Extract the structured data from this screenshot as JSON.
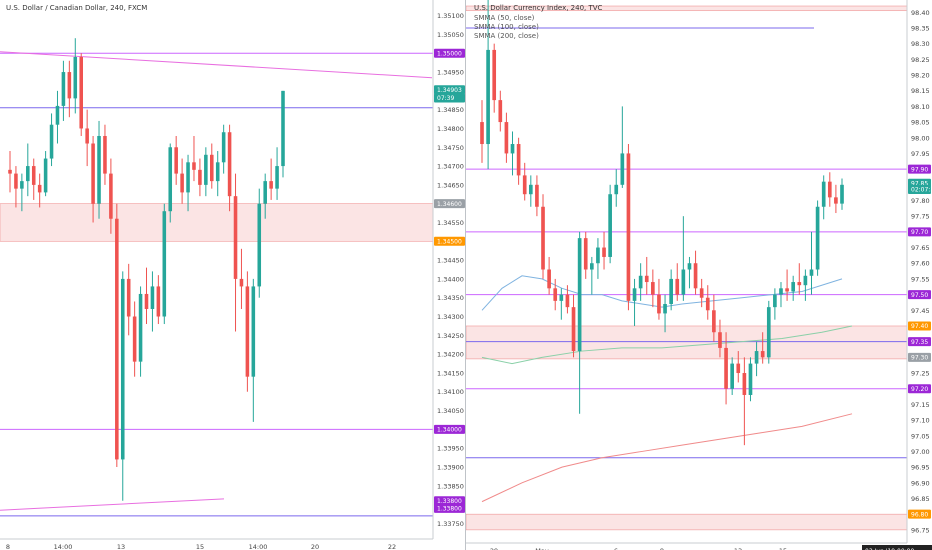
{
  "left": {
    "title": "U.S. Dollar / Canadian Dollar, 240, FXCM",
    "y_ticks": [
      "1.35100",
      "1.35050",
      "1.35000",
      "1.34950",
      "1.34900",
      "1.34850",
      "1.34800",
      "1.34750",
      "1.34700",
      "1.34650",
      "1.34600",
      "1.34550",
      "1.34500",
      "1.34450",
      "1.34400",
      "1.34350",
      "1.34300",
      "1.34250",
      "1.34200",
      "1.34150",
      "1.34100",
      "1.34050",
      "1.34000",
      "1.33950",
      "1.33900",
      "1.33850",
      "1.33800",
      "1.33750"
    ],
    "x_ticks": [
      "8",
      "14:00",
      "13",
      "15",
      "14:00",
      "20",
      "22"
    ],
    "tags": [
      {
        "text": "1.35000",
        "value": 1.35,
        "color": "#9c27d6"
      },
      {
        "text": "1.34903",
        "value": 1.34903,
        "color": "#26a69a"
      },
      {
        "text": "07:39",
        "value": 1.34881,
        "color": "#26a69a"
      },
      {
        "text": "1.34600",
        "value": 1.346,
        "color": "#9aa0a6"
      },
      {
        "text": "1.34500",
        "value": 1.345,
        "color": "#ff9800"
      },
      {
        "text": "1.34000",
        "value": 1.34,
        "color": "#9c27d6"
      },
      {
        "text": "1.33800",
        "value": 1.3381,
        "color": "#9c27d6"
      },
      {
        "text": "1.33800",
        "value": 1.3379,
        "color": "#9c27d6"
      }
    ],
    "hlines": [
      {
        "value": 1.35,
        "color": "#cc66ff"
      },
      {
        "value": 1.34855,
        "color": "#7b68ee"
      },
      {
        "value": 1.34,
        "color": "#cc66ff"
      },
      {
        "value": 1.3377,
        "color": "#7b68ee"
      }
    ],
    "zone": {
      "top": 1.346,
      "bottom": 1.345
    },
    "trendlines": [
      {
        "x1": 0,
        "y1": 1.35004,
        "x2": 432,
        "y2": 1.34935,
        "color": "#e86fe0"
      },
      {
        "x1": 0,
        "y1": 1.33785,
        "x2": 224,
        "y2": 1.33815,
        "color": "#e86fe0"
      }
    ],
    "ylim": [
      1.33735,
      1.35115
    ],
    "candles": [
      [
        1.3469,
        1.3474,
        1.3463,
        1.3468
      ],
      [
        1.3468,
        1.347,
        1.3459,
        1.3464
      ],
      [
        1.3464,
        1.3468,
        1.3458,
        1.3466
      ],
      [
        1.3466,
        1.3476,
        1.3462,
        1.347
      ],
      [
        1.347,
        1.3472,
        1.3461,
        1.3465
      ],
      [
        1.3465,
        1.3468,
        1.3459,
        1.3463
      ],
      [
        1.3463,
        1.3474,
        1.3462,
        1.3472
      ],
      [
        1.3472,
        1.3484,
        1.347,
        1.3481
      ],
      [
        1.3481,
        1.349,
        1.3476,
        1.3486
      ],
      [
        1.3486,
        1.3498,
        1.3482,
        1.3495
      ],
      [
        1.3495,
        1.3498,
        1.3483,
        1.3488
      ],
      [
        1.3488,
        1.3504,
        1.3484,
        1.3499
      ],
      [
        1.3499,
        1.35,
        1.3478,
        1.348
      ],
      [
        1.348,
        1.3485,
        1.347,
        1.3476
      ],
      [
        1.3476,
        1.3478,
        1.3455,
        1.346
      ],
      [
        1.346,
        1.3482,
        1.3456,
        1.3478
      ],
      [
        1.3478,
        1.3481,
        1.3465,
        1.3468
      ],
      [
        1.3468,
        1.3472,
        1.3452,
        1.3456
      ],
      [
        1.3456,
        1.346,
        1.339,
        1.3392
      ],
      [
        1.3392,
        1.3442,
        1.3381,
        1.344
      ],
      [
        1.344,
        1.3444,
        1.3425,
        1.343
      ],
      [
        1.343,
        1.3434,
        1.3414,
        1.3418
      ],
      [
        1.3418,
        1.3438,
        1.3414,
        1.3436
      ],
      [
        1.3436,
        1.3443,
        1.3428,
        1.3432
      ],
      [
        1.3432,
        1.3442,
        1.3426,
        1.3438
      ],
      [
        1.3438,
        1.3441,
        1.3428,
        1.343
      ],
      [
        1.343,
        1.346,
        1.3428,
        1.3458
      ],
      [
        1.3458,
        1.3476,
        1.3455,
        1.3475
      ],
      [
        1.3475,
        1.3478,
        1.3465,
        1.3468
      ],
      [
        1.3468,
        1.3472,
        1.346,
        1.3463
      ],
      [
        1.3463,
        1.3473,
        1.3458,
        1.3471
      ],
      [
        1.3471,
        1.3478,
        1.3466,
        1.3469
      ],
      [
        1.3469,
        1.3472,
        1.3462,
        1.3465
      ],
      [
        1.3465,
        1.3475,
        1.3462,
        1.3473
      ],
      [
        1.3473,
        1.3476,
        1.3464,
        1.3466
      ],
      [
        1.3466,
        1.3474,
        1.3462,
        1.3471
      ],
      [
        1.3471,
        1.3481,
        1.3468,
        1.3479
      ],
      [
        1.3479,
        1.3481,
        1.3458,
        1.3462
      ],
      [
        1.3462,
        1.3468,
        1.3426,
        1.344
      ],
      [
        1.344,
        1.3448,
        1.3432,
        1.3438
      ],
      [
        1.3438,
        1.3442,
        1.341,
        1.3414
      ],
      [
        1.3414,
        1.344,
        1.3402,
        1.3438
      ],
      [
        1.3438,
        1.3464,
        1.3435,
        1.346
      ],
      [
        1.346,
        1.3468,
        1.3456,
        1.3466
      ],
      [
        1.3466,
        1.3472,
        1.3461,
        1.3464
      ],
      [
        1.3464,
        1.3475,
        1.3461,
        1.347
      ],
      [
        1.347,
        1.349,
        1.3467,
        1.349
      ]
    ]
  },
  "right": {
    "title": "U.S. Dollar Currency Index, 240, TVC",
    "legend": [
      "SMMA (50, close)",
      "SMMA (100, close)",
      "SMMA (200, close)"
    ],
    "y_ticks": [
      "98.40",
      "98.35",
      "98.30",
      "98.25",
      "98.20",
      "98.15",
      "98.10",
      "98.05",
      "98.00",
      "97.95",
      "97.90",
      "97.85",
      "97.80",
      "97.75",
      "97.70",
      "97.65",
      "97.60",
      "97.55",
      "97.50",
      "97.45",
      "97.40",
      "97.35",
      "97.30",
      "97.25",
      "97.20",
      "97.15",
      "97.10",
      "97.05",
      "97.00",
      "96.95",
      "96.90",
      "96.85",
      "96.80",
      "96.75"
    ],
    "x_ticks": [
      "29",
      "May",
      "6",
      "8",
      "13",
      "15"
    ],
    "date_tag": "03 Jun '19",
    "time_tag": "00:00",
    "tags": [
      {
        "text": "97.90",
        "value": 97.9,
        "color": "#9c27d6"
      },
      {
        "text": "97.85",
        "value": 97.855,
        "color": "#26a69a"
      },
      {
        "text": "02:07:39",
        "value": 97.835,
        "color": "#26a69a"
      },
      {
        "text": "97.70",
        "value": 97.7,
        "color": "#9c27d6"
      },
      {
        "text": "97.50",
        "value": 97.5,
        "color": "#9c27d6"
      },
      {
        "text": "97.40",
        "value": 97.4,
        "color": "#ff9800"
      },
      {
        "text": "97.35",
        "value": 97.35,
        "color": "#9c27d6"
      },
      {
        "text": "97.30",
        "value": 97.3,
        "color": "#9aa0a6"
      },
      {
        "text": "97.20",
        "value": 97.2,
        "color": "#9c27d6"
      },
      {
        "text": "96.80",
        "value": 96.8,
        "color": "#ff9800"
      }
    ],
    "hlines": [
      {
        "value": 97.9,
        "color": "#cc66ff"
      },
      {
        "value": 97.7,
        "color": "#cc66ff"
      },
      {
        "value": 97.5,
        "color": "#cc66ff"
      },
      {
        "value": 97.35,
        "color": "#7b68ee"
      },
      {
        "value": 97.2,
        "color": "#cc66ff"
      },
      {
        "value": 96.98,
        "color": "#7b68ee"
      }
    ],
    "segment_lines": [
      {
        "value": 98.35,
        "color": "#7b68ee"
      }
    ],
    "zones": [
      {
        "top": 97.4,
        "bottom": 97.295
      },
      {
        "top": 96.8,
        "bottom": 96.75
      },
      {
        "top": 98.42,
        "bottom": 98.405
      }
    ],
    "ylim": [
      96.74,
      98.42
    ],
    "candles": [
      [
        98.05,
        98.12,
        97.92,
        97.98
      ],
      [
        97.98,
        98.45,
        97.9,
        98.28
      ],
      [
        98.28,
        98.3,
        98.08,
        98.12
      ],
      [
        98.12,
        98.15,
        98.02,
        98.05
      ],
      [
        98.05,
        98.08,
        97.92,
        97.95
      ],
      [
        97.95,
        98.02,
        97.88,
        97.98
      ],
      [
        97.98,
        98.0,
        97.85,
        97.88
      ],
      [
        97.88,
        97.92,
        97.8,
        97.82
      ],
      [
        97.82,
        97.88,
        97.78,
        97.85
      ],
      [
        97.85,
        97.88,
        97.75,
        97.78
      ],
      [
        97.78,
        97.82,
        97.55,
        97.58
      ],
      [
        97.58,
        97.62,
        97.5,
        97.52
      ],
      [
        97.52,
        97.55,
        97.45,
        97.48
      ],
      [
        97.48,
        97.52,
        97.42,
        97.5
      ],
      [
        97.5,
        97.53,
        97.44,
        97.46
      ],
      [
        97.46,
        97.5,
        97.3,
        97.32
      ],
      [
        97.32,
        97.7,
        97.12,
        97.68
      ],
      [
        97.68,
        97.7,
        97.55,
        97.58
      ],
      [
        97.58,
        97.62,
        97.5,
        97.6
      ],
      [
        97.6,
        97.68,
        97.55,
        97.65
      ],
      [
        97.65,
        97.7,
        97.58,
        97.62
      ],
      [
        97.62,
        97.85,
        97.6,
        97.82
      ],
      [
        97.82,
        97.9,
        97.78,
        97.85
      ],
      [
        97.85,
        98.1,
        97.84,
        97.95
      ],
      [
        97.95,
        97.98,
        97.45,
        97.48
      ],
      [
        97.48,
        97.55,
        97.4,
        97.52
      ],
      [
        97.52,
        97.6,
        97.48,
        97.56
      ],
      [
        97.56,
        97.62,
        97.5,
        97.54
      ],
      [
        97.54,
        97.58,
        97.46,
        97.5
      ],
      [
        97.5,
        97.55,
        97.42,
        97.44
      ],
      [
        97.44,
        97.5,
        97.38,
        97.47
      ],
      [
        97.47,
        97.58,
        97.45,
        97.55
      ],
      [
        97.55,
        97.6,
        97.48,
        97.5
      ],
      [
        97.5,
        97.75,
        97.48,
        97.58
      ],
      [
        97.58,
        97.62,
        97.52,
        97.6
      ],
      [
        97.6,
        97.64,
        97.5,
        97.52
      ],
      [
        97.52,
        97.55,
        97.46,
        97.49
      ],
      [
        97.49,
        97.53,
        97.42,
        97.45
      ],
      [
        97.45,
        97.5,
        97.35,
        97.38
      ],
      [
        97.38,
        97.42,
        97.3,
        97.33
      ],
      [
        97.33,
        97.38,
        97.15,
        97.2
      ],
      [
        97.2,
        97.3,
        97.18,
        97.28
      ],
      [
        97.28,
        97.32,
        97.22,
        97.25
      ],
      [
        97.25,
        97.3,
        97.02,
        97.18
      ],
      [
        97.18,
        97.3,
        97.16,
        97.28
      ],
      [
        97.28,
        97.35,
        97.24,
        97.32
      ],
      [
        97.32,
        97.38,
        97.28,
        97.3
      ],
      [
        97.3,
        97.48,
        97.28,
        97.46
      ],
      [
        97.46,
        97.52,
        97.42,
        97.5
      ],
      [
        97.5,
        97.54,
        97.46,
        97.52
      ],
      [
        97.52,
        97.58,
        97.48,
        97.51
      ],
      [
        97.51,
        97.56,
        97.48,
        97.54
      ],
      [
        97.54,
        97.6,
        97.5,
        97.53
      ],
      [
        97.53,
        97.58,
        97.48,
        97.56
      ],
      [
        97.56,
        97.7,
        97.5,
        97.58
      ],
      [
        97.58,
        97.8,
        97.56,
        97.78
      ],
      [
        97.78,
        97.88,
        97.74,
        97.86
      ],
      [
        97.86,
        97.89,
        97.78,
        97.81
      ],
      [
        97.81,
        97.85,
        97.76,
        97.79
      ],
      [
        97.79,
        97.87,
        97.77,
        97.85
      ]
    ],
    "smma50": [
      [
        0,
        97.45
      ],
      [
        20,
        97.52
      ],
      [
        40,
        97.56
      ],
      [
        60,
        97.55
      ],
      [
        80,
        97.52
      ],
      [
        100,
        97.5
      ],
      [
        120,
        97.5
      ],
      [
        140,
        97.48
      ],
      [
        160,
        97.47
      ],
      [
        180,
        97.46
      ],
      [
        200,
        97.47
      ],
      [
        230,
        97.48
      ],
      [
        260,
        97.49
      ],
      [
        290,
        97.5
      ],
      [
        320,
        97.51
      ],
      [
        360,
        97.55
      ]
    ],
    "smma100": [
      [
        0,
        97.3
      ],
      [
        30,
        97.28
      ],
      [
        60,
        97.3
      ],
      [
        100,
        97.32
      ],
      [
        140,
        97.33
      ],
      [
        180,
        97.33
      ],
      [
        220,
        97.34
      ],
      [
        260,
        97.35
      ],
      [
        300,
        97.36
      ],
      [
        340,
        97.38
      ],
      [
        370,
        97.4
      ]
    ],
    "smma200": [
      [
        0,
        96.84
      ],
      [
        40,
        96.9
      ],
      [
        80,
        96.95
      ],
      [
        120,
        96.98
      ],
      [
        160,
        97.0
      ],
      [
        200,
        97.02
      ],
      [
        240,
        97.04
      ],
      [
        280,
        97.06
      ],
      [
        320,
        97.08
      ],
      [
        370,
        97.12
      ]
    ]
  }
}
